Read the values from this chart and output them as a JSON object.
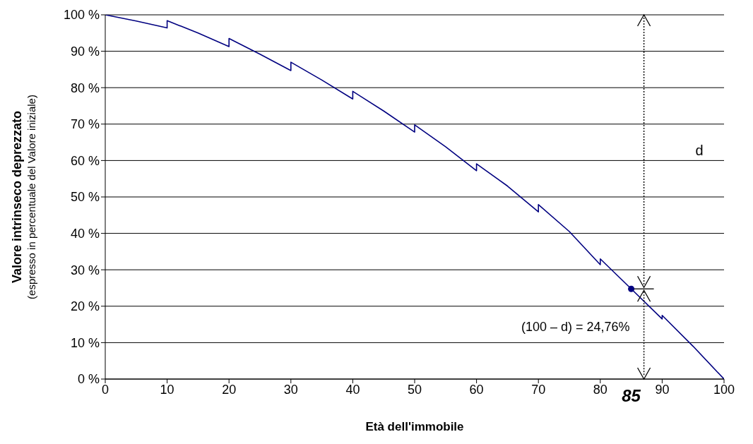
{
  "chart_data": {
    "type": "line",
    "xlabel": "Età dell'immobile",
    "ylabel": "Valore intrinseco deprezzato\n(espresso in percentuale del Valore iniziale)",
    "xlim": [
      0,
      100
    ],
    "xticks": [
      0,
      10,
      20,
      30,
      40,
      50,
      60,
      70,
      80,
      90,
      100
    ],
    "ylim": [
      0,
      100
    ],
    "yticks": [
      {
        "value": 0,
        "label": "0 %"
      },
      {
        "value": 10,
        "label": "10 %"
      },
      {
        "value": 20,
        "label": "20 %"
      },
      {
        "value": 30,
        "label": "30 %"
      },
      {
        "value": 40,
        "label": "40 %"
      },
      {
        "value": 50,
        "label": "50 %"
      },
      {
        "value": 60,
        "label": "60 %"
      },
      {
        "value": 70,
        "label": "70 %"
      },
      {
        "value": 80,
        "label": "80 %"
      },
      {
        "value": 90,
        "label": "90 %"
      },
      {
        "value": 100,
        "label": "100 %"
      }
    ],
    "grid": "y",
    "legend": false,
    "marker": "none",
    "line_style": "solid",
    "series": [
      {
        "type": "line",
        "color": "#000080",
        "x": [
          0,
          5,
          10,
          10,
          15,
          20,
          20,
          25,
          30,
          30,
          35,
          40,
          40,
          45,
          50,
          50,
          55,
          60,
          60,
          65,
          70,
          70,
          75,
          80,
          80,
          85,
          90,
          90,
          95,
          100
        ],
        "values": [
          100,
          98.3,
          96.4,
          98.4,
          95,
          91.3,
          93.5,
          89.2,
          84.7,
          87,
          82.1,
          76.9,
          79,
          73.6,
          67.8,
          69.8,
          63.8,
          57.2,
          59.1,
          53,
          45.9,
          47.9,
          40.5,
          31.4,
          33,
          24.76,
          16.5,
          17.5,
          9,
          0
        ]
      },
      {
        "type": "scatter",
        "marker": "circle",
        "color": "#000080",
        "x": [
          85
        ],
        "values": [
          24.76
        ]
      }
    ],
    "annotations": [
      "d",
      "(100 – d) =  24,76%",
      "85"
    ]
  }
}
